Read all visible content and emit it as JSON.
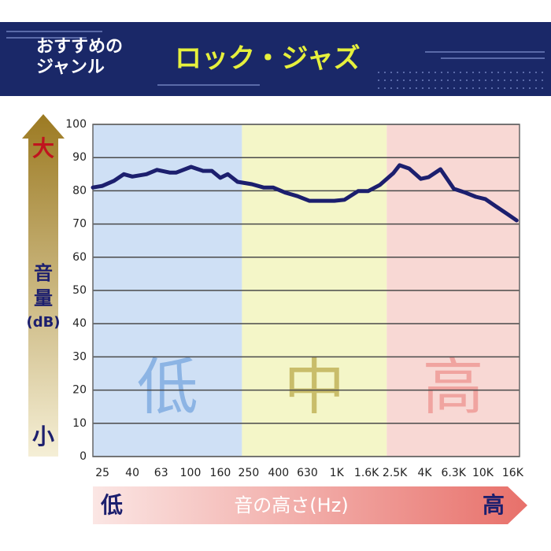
{
  "header": {
    "label": [
      "おすすめの",
      "ジャンル"
    ],
    "title": "ロック・ジャズ"
  },
  "chart_data": {
    "type": "line",
    "y_high": "大",
    "y_low": "小",
    "ylabel": [
      "音",
      "量",
      "(dB)"
    ],
    "x_low": "低",
    "x_high": "高",
    "xlabel": "音の高さ(Hz)",
    "xlog": true,
    "xlim": [
      21.5,
      17800
    ],
    "ylim": [
      0,
      100
    ],
    "yticks": [
      0,
      10,
      20,
      30,
      40,
      50,
      60,
      70,
      80,
      90,
      100
    ],
    "grid": true,
    "xticks": [
      25,
      40,
      63,
      100,
      160,
      250,
      400,
      630,
      {
        "value": 1000,
        "label": "1K"
      },
      {
        "value": 1600,
        "label": "1.6K"
      },
      {
        "value": 2500,
        "label": "2.5K"
      },
      {
        "value": 4000,
        "label": "4K"
      },
      {
        "value": 6300,
        "label": "6.3K"
      },
      {
        "value": 10000,
        "label": "10K"
      },
      {
        "value": 16000,
        "label": "16K"
      }
    ],
    "bands": [
      {
        "label": "低",
        "range": [
          21.5,
          225
        ],
        "color": "#cfe0f5",
        "label_color": "#8cb4e4"
      },
      {
        "label": "中",
        "range": [
          225,
          2200
        ],
        "color": "#f4f6c8",
        "label_color": "#c9bd6a"
      },
      {
        "label": "高",
        "range": [
          2200,
          17800
        ],
        "color": "#f8d8d4",
        "label_color": "#f0a4a0"
      }
    ],
    "color": "#1c1f6e",
    "x": [
      21.5,
      25,
      30,
      35,
      40,
      50,
      59,
      72,
      80,
      101,
      122,
      140,
      160,
      180,
      210,
      263,
      316,
      367,
      448,
      539,
      649,
      791,
      963,
      1130,
      1400,
      1640,
      1980,
      2440,
      2690,
      3130,
      3760,
      4250,
      5130,
      6330,
      7430,
      8950,
      10400,
      12200,
      14700,
      17000
    ],
    "values": [
      81,
      81.5,
      83,
      85,
      84.3,
      85,
      86.3,
      85.5,
      85.5,
      87.2,
      86,
      86,
      83.9,
      85,
      82.7,
      82,
      81,
      81,
      79.4,
      78.4,
      77,
      77,
      77,
      77.3,
      79.9,
      79.9,
      81.8,
      85.3,
      87.7,
      86.7,
      83.6,
      84.1,
      86.5,
      80.6,
      79.6,
      78.2,
      77.5,
      75.4,
      73,
      71.1
    ]
  }
}
